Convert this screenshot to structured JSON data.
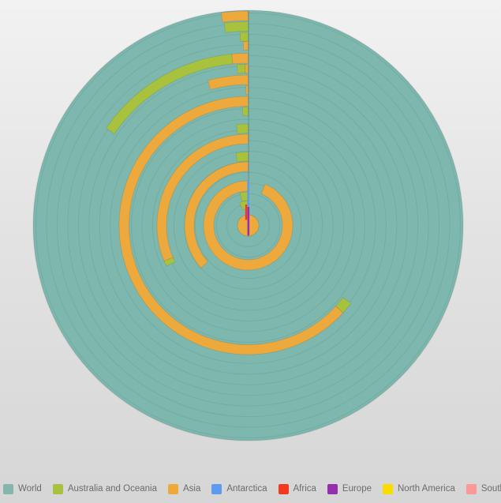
{
  "legend": {
    "items": [
      {
        "label": "World",
        "color": "#85b6ad"
      },
      {
        "label": "Australia and Oceania",
        "color": "#a9c23d"
      },
      {
        "label": "Asia",
        "color": "#eda93c"
      },
      {
        "label": "Antarctica",
        "color": "#5b9cf0"
      },
      {
        "label": "Africa",
        "color": "#f5391f"
      },
      {
        "label": "Europe",
        "color": "#9330ab"
      },
      {
        "label": "North America",
        "color": "#fcdc00"
      },
      {
        "label": "South America",
        "color": "#fb9898"
      }
    ]
  },
  "chart_data": {
    "type": "radial-bar",
    "title": "",
    "angle_unit": "degrees_counterclockwise_from_top",
    "series": [
      {
        "name": "World",
        "color": "#85b6ad",
        "note": "full 360 background disc"
      },
      {
        "name": "Australia and Oceania",
        "color": "#a9c23d"
      },
      {
        "name": "Asia",
        "color": "#eda93c"
      },
      {
        "name": "Antarctica",
        "color": "#5b9cf0"
      },
      {
        "name": "Africa",
        "color": "#f5391f"
      },
      {
        "name": "Europe",
        "color": "#9330ab"
      },
      {
        "name": "North America",
        "color": "#fcdc00"
      },
      {
        "name": "South America",
        "color": "#fb9898"
      }
    ],
    "plot": {
      "center_x": 314.5,
      "center_y": 285.5,
      "outer_radius": 272.5,
      "disc_color": "#7db7ad",
      "gridline_color": "#6ca49b",
      "gridline_step": 13.45,
      "gridline_count": 20,
      "axis_line_color": "#53707a",
      "bar_stroke": "rgba(0,0,0,0.10)"
    },
    "rings": [
      {
        "r_outer": 271.5,
        "r_inner": 259.5,
        "segments": [
          {
            "series": "Asia",
            "start_deg": 0,
            "end_deg": 7.2
          }
        ]
      },
      {
        "r_outer": 258.0,
        "r_inner": 246.0,
        "segments": [
          {
            "series": "Australia and Oceania",
            "start_deg": 0,
            "end_deg": 6.7
          }
        ]
      },
      {
        "r_outer": 244.5,
        "r_inner": 233.5,
        "segments": [
          {
            "series": "Australia and Oceania",
            "start_deg": 0,
            "end_deg": 2.4
          }
        ]
      },
      {
        "r_outer": 233.0,
        "r_inner": 222.0,
        "segments": [
          {
            "series": "Asia",
            "start_deg": 0,
            "end_deg": 1.5
          }
        ]
      },
      {
        "r_outer": 218.0,
        "r_inner": 205.5,
        "segments": [
          {
            "series": "Asia",
            "start_deg": 0,
            "end_deg": 5.5
          },
          {
            "series": "Australia and Oceania",
            "start_deg": 5.5,
            "end_deg": 55.6
          }
        ]
      },
      {
        "r_outer": 204.0,
        "r_inner": 193.0,
        "segments": [
          {
            "series": "Asia",
            "start_deg": 0,
            "end_deg": 1.1
          },
          {
            "series": "Australia and Oceania",
            "start_deg": 1.1,
            "end_deg": 4.0
          }
        ]
      },
      {
        "r_outer": 190.5,
        "r_inner": 178.5,
        "segments": [
          {
            "series": "Asia",
            "start_deg": 0,
            "end_deg": 15.5
          }
        ]
      },
      {
        "r_outer": 177.0,
        "r_inner": 166.0,
        "segments": [
          {
            "series": "Asia",
            "start_deg": 0,
            "end_deg": 0.9
          }
        ]
      },
      {
        "r_outer": 163.5,
        "r_inner": 151.0,
        "segments": [
          {
            "series": "Asia",
            "start_deg": 0,
            "end_deg": 227.4
          },
          {
            "series": "Australia and Oceania",
            "start_deg": 227.4,
            "end_deg": 232.8
          }
        ]
      },
      {
        "r_outer": 150.0,
        "r_inner": 139.0,
        "segments": [
          {
            "series": "Australia and Oceania",
            "start_deg": 0,
            "end_deg": 2.8
          }
        ]
      },
      {
        "r_outer": 128.5,
        "r_inner": 117.0,
        "segments": [
          {
            "series": "Australia and Oceania",
            "start_deg": 0,
            "end_deg": 6.6
          }
        ]
      },
      {
        "r_outer": 115.5,
        "r_inner": 103.5,
        "segments": [
          {
            "series": "Asia",
            "start_deg": 0,
            "end_deg": 113.0
          },
          {
            "series": "Australia and Oceania",
            "start_deg": 113.0,
            "end_deg": 116.5
          }
        ]
      },
      {
        "r_outer": 93.0,
        "r_inner": 81.5,
        "segments": [
          {
            "series": "Australia and Oceania",
            "start_deg": 0,
            "end_deg": 9.6
          }
        ]
      },
      {
        "r_outer": 80.5,
        "r_inner": 68.5,
        "segments": [
          {
            "series": "Asia",
            "start_deg": 0,
            "end_deg": 132.0
          }
        ]
      },
      {
        "r_outer": 56.5,
        "r_inner": 43.5,
        "segments": [
          {
            "series": "Asia",
            "start_deg": 0,
            "end_deg": 337.5
          }
        ]
      },
      {
        "r_outer": 42.5,
        "r_inner": 31.5,
        "segments": [
          {
            "series": "Australia and Oceania",
            "start_deg": 0,
            "end_deg": 14.0
          }
        ]
      },
      {
        "r_outer": 31.0,
        "r_inner": 21.0,
        "segments": [
          {
            "series": "Australia and Oceania",
            "start_deg": 0,
            "end_deg": 20.0
          }
        ]
      }
    ],
    "axis_slivers": [
      {
        "series": "Antarctica",
        "x": 313.4,
        "y": 228.0,
        "w": 2.4,
        "h": 49.0
      },
      {
        "series": "Africa",
        "x": 310.8,
        "y": 259.0,
        "w": 2.5,
        "h": 19.5
      },
      {
        "series": "Europe",
        "x": 313.6,
        "y": 262.0,
        "w": 2.5,
        "h": 36.5
      }
    ],
    "center_dot": {
      "series": "Asia",
      "radius": 13.5
    }
  }
}
